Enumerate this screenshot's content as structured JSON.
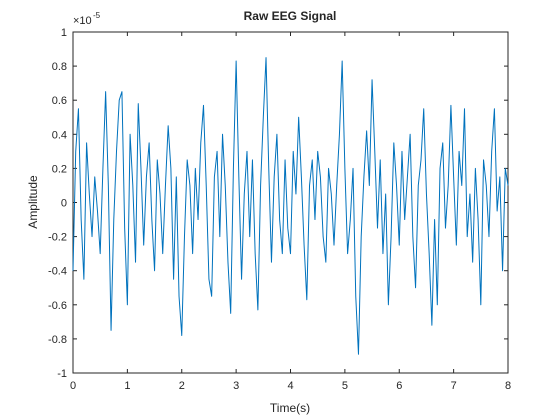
{
  "chart_data": {
    "type": "line",
    "title": "Raw EEG Signal",
    "xlabel": "Time(s)",
    "ylabel": "Amplitude",
    "y_multiplier": "×10",
    "y_multiplier_exponent": "-5",
    "xlim": [
      0,
      8
    ],
    "xticks": [
      0,
      1,
      2,
      3,
      4,
      5,
      6,
      7,
      8
    ],
    "ylim": [
      -1,
      1
    ],
    "yticks": [
      -1,
      -0.8,
      -0.6,
      -0.4,
      -0.2,
      0,
      0.2,
      0.4,
      0.6,
      0.8,
      1
    ],
    "grid": false,
    "x": [
      0,
      0.05,
      0.1,
      0.15,
      0.2,
      0.25,
      0.3,
      0.35,
      0.4,
      0.45,
      0.5,
      0.55,
      0.6,
      0.65,
      0.7,
      0.75,
      0.8,
      0.85,
      0.9,
      0.95,
      1,
      1.05,
      1.1,
      1.15,
      1.2,
      1.25,
      1.3,
      1.35,
      1.4,
      1.45,
      1.5,
      1.55,
      1.6,
      1.65,
      1.7,
      1.75,
      1.8,
      1.85,
      1.9,
      1.95,
      2,
      2.05,
      2.1,
      2.15,
      2.2,
      2.25,
      2.3,
      2.35,
      2.4,
      2.45,
      2.5,
      2.55,
      2.6,
      2.65,
      2.7,
      2.75,
      2.8,
      2.85,
      2.9,
      2.95,
      3,
      3.05,
      3.1,
      3.15,
      3.2,
      3.25,
      3.3,
      3.35,
      3.4,
      3.45,
      3.5,
      3.55,
      3.6,
      3.65,
      3.7,
      3.75,
      3.8,
      3.85,
      3.9,
      3.95,
      4,
      4.05,
      4.1,
      4.15,
      4.2,
      4.25,
      4.3,
      4.35,
      4.4,
      4.45,
      4.5,
      4.55,
      4.6,
      4.65,
      4.7,
      4.75,
      4.8,
      4.85,
      4.9,
      4.95,
      5,
      5.05,
      5.1,
      5.15,
      5.2,
      5.25,
      5.3,
      5.35,
      5.4,
      5.45,
      5.5,
      5.55,
      5.6,
      5.65,
      5.7,
      5.75,
      5.8,
      5.85,
      5.9,
      5.95,
      6,
      6.05,
      6.1,
      6.15,
      6.2,
      6.25,
      6.3,
      6.35,
      6.4,
      6.45,
      6.5,
      6.55,
      6.6,
      6.65,
      6.7,
      6.75,
      6.8,
      6.85,
      6.9,
      6.95,
      7,
      7.05,
      7.1,
      7.15,
      7.2,
      7.25,
      7.3,
      7.35,
      7.4,
      7.45,
      7.5,
      7.55,
      7.6,
      7.65,
      7.7,
      7.75,
      7.8,
      7.85,
      7.9,
      7.95,
      8
    ],
    "series": [
      {
        "name": "EEG",
        "color": "#0072bd",
        "values": [
          -0.4,
          0.3,
          0.55,
          -0.1,
          -0.45,
          0.35,
          0.05,
          -0.2,
          0.15,
          -0.05,
          -0.3,
          0.2,
          0.65,
          0.1,
          -0.75,
          -0.1,
          0.3,
          0.6,
          0.65,
          -0.15,
          -0.6,
          0.4,
          0.1,
          -0.35,
          0.58,
          0.2,
          -0.25,
          0.15,
          0.35,
          -0.1,
          -0.4,
          0.25,
          0.05,
          -0.3,
          0.1,
          0.45,
          0.2,
          -0.45,
          0.15,
          -0.55,
          -0.78,
          -0.2,
          0.25,
          0.1,
          -0.3,
          0.2,
          -0.1,
          0.35,
          0.57,
          0.1,
          -0.45,
          -0.55,
          0.15,
          0.3,
          -0.2,
          0.4,
          0.1,
          -0.35,
          -0.65,
          0.2,
          0.83,
          0.15,
          -0.45,
          0.05,
          0.3,
          -0.2,
          0.25,
          -0.3,
          -0.63,
          0.1,
          0.5,
          0.85,
          0.2,
          -0.35,
          0.15,
          0.4,
          -0.1,
          -0.3,
          0.25,
          -0.15,
          -0.3,
          0.3,
          0.05,
          0.5,
          0.15,
          -0.25,
          -0.57,
          0.1,
          0.25,
          -0.1,
          0.3,
          0.15,
          -0.2,
          -0.35,
          0.2,
          0.05,
          -0.25,
          0.1,
          0.4,
          0.83,
          0.2,
          -0.3,
          -0.1,
          0.2,
          -0.55,
          -0.89,
          -0.2,
          0.15,
          0.42,
          0.1,
          0.72,
          0.3,
          -0.15,
          0.25,
          -0.3,
          0.05,
          -0.6,
          -0.2,
          0.35,
          0.1,
          -0.25,
          0.3,
          -0.1,
          0.15,
          0.4,
          -0.2,
          -0.5,
          0.1,
          0.25,
          0.55,
          0.05,
          -0.3,
          -0.72,
          -0.1,
          -0.6,
          0.2,
          0.35,
          -0.15,
          0.1,
          0.57,
          0.15,
          -0.25,
          0.3,
          0.1,
          0.55,
          -0.2,
          0.05,
          -0.35,
          0.2,
          -0.1,
          -0.6,
          0.25,
          0.1,
          -0.2,
          0.3,
          0.55,
          -0.05,
          0.15,
          -0.4,
          0.2,
          0.1
        ]
      }
    ]
  }
}
